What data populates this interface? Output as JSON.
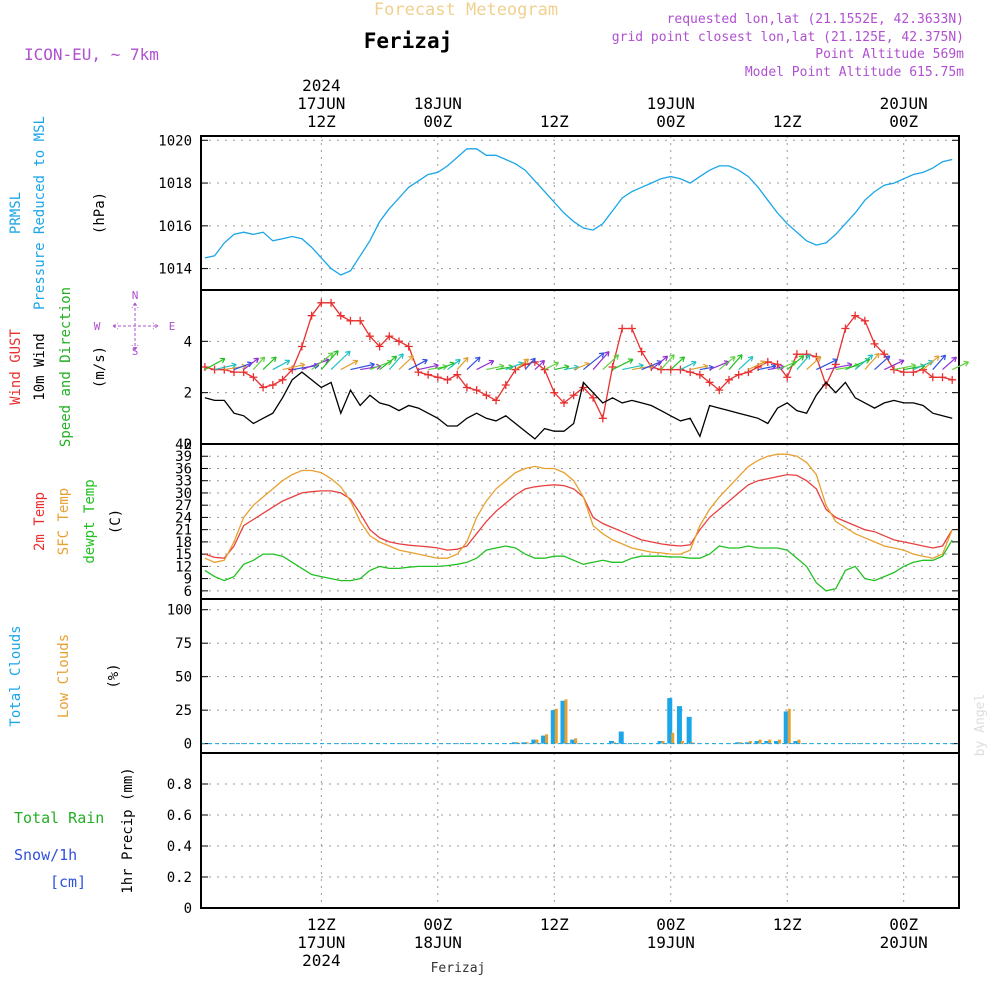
{
  "header": {
    "subtitle": "Forecast Meteogram",
    "location": "Ferizaj",
    "model": "ICON-EU, ~ 7km",
    "requested": "requested lon,lat (21.1552E, 42.3633N)",
    "grid_point": "grid point closest lon,lat (21.125E, 42.375N)",
    "point_altitude": "Point Altitude 569m",
    "model_altitude": "Model Point Altitude 615.75m",
    "footer_location": "Ferizaj",
    "credit": "by Angel"
  },
  "time_axis": {
    "top_labels": [
      {
        "h": 12,
        "lines": [
          "2024",
          "17JUN",
          "12Z"
        ]
      },
      {
        "h": 24,
        "lines": [
          "18JUN",
          "00Z"
        ]
      },
      {
        "h": 36,
        "lines": [
          "12Z"
        ]
      },
      {
        "h": 48,
        "lines": [
          "19JUN",
          "00Z"
        ]
      },
      {
        "h": 60,
        "lines": [
          "12Z"
        ]
      },
      {
        "h": 72,
        "lines": [
          "20JUN",
          "00Z"
        ]
      }
    ],
    "bottom_labels": [
      {
        "h": 12,
        "lines": [
          "12Z",
          "17JUN",
          "2024"
        ]
      },
      {
        "h": 24,
        "lines": [
          "00Z",
          "18JUN"
        ]
      },
      {
        "h": 36,
        "lines": [
          "12Z"
        ]
      },
      {
        "h": 48,
        "lines": [
          "00Z",
          "19JUN"
        ]
      },
      {
        "h": 60,
        "lines": [
          "12Z"
        ]
      },
      {
        "h": 72,
        "lines": [
          "00Z",
          "20JUN"
        ]
      }
    ]
  },
  "panels": {
    "pressure": {
      "labels": [
        {
          "text": "PRMSL",
          "color": "#1aa6e8"
        },
        {
          "text": "Pressure Reduced to MSL",
          "color": "#1aa6e8"
        },
        {
          "text": "(hPa)",
          "color": "#000000"
        }
      ]
    },
    "wind": {
      "labels": [
        {
          "text": "Wind GUST",
          "color": "#e83030"
        },
        {
          "text": "10m Wind",
          "color": "#000000"
        },
        {
          "text": "Speed and Direction",
          "color": "#22b022"
        },
        {
          "text": "(m/s)",
          "color": "#000000"
        }
      ],
      "compass": {
        "n": "N",
        "s": "S",
        "w": "W",
        "e": "E",
        "color": "#b050d0"
      }
    },
    "temperature": {
      "labels": [
        {
          "text": "2m Temp",
          "color": "#e83030"
        },
        {
          "text": "SFC Temp",
          "color": "#e8a030"
        },
        {
          "text": "dewpt Temp",
          "color": "#22c022"
        },
        {
          "text": "(C)",
          "color": "#000000"
        }
      ]
    },
    "clouds": {
      "labels": [
        {
          "text": "Total Clouds",
          "color": "#1aa6e8"
        },
        {
          "text": "Low Clouds",
          "color": "#e8a030"
        },
        {
          "text": "(%)",
          "color": "#000000"
        }
      ]
    },
    "precip": {
      "labels": [
        {
          "text": "1hr Precip (mm)",
          "color": "#000000"
        }
      ],
      "side_labels": [
        {
          "text": "Total  Rain",
          "color": "#22b022"
        },
        {
          "text": "Snow/1h",
          "color": "#3050e0"
        },
        {
          "text": "[cm]",
          "color": "#3050e0"
        }
      ]
    }
  },
  "colors": {
    "pressure": "#1aa6e8",
    "gust": "#e83030",
    "wind": "#000000",
    "t2m": "#e84040",
    "tsfc": "#e8a030",
    "dewpt": "#22c022",
    "total_cloud": "#1aa6e8",
    "low_cloud": "#e8a030",
    "grid": "#999999"
  },
  "chart_data": [
    {
      "type": "line",
      "x_unit": "hours from 2024-06-17 00Z",
      "title": "PRMSL Pressure Reduced to MSL",
      "ylabel": "(hPa)",
      "ylim": [
        1013,
        1020.2
      ],
      "yticks": [
        1014,
        1016,
        1018,
        1020
      ],
      "x": [
        0,
        1,
        2,
        3,
        4,
        5,
        6,
        7,
        8,
        9,
        10,
        11,
        12,
        13,
        14,
        15,
        16,
        17,
        18,
        19,
        20,
        21,
        22,
        23,
        24,
        25,
        26,
        27,
        28,
        29,
        30,
        31,
        32,
        33,
        34,
        35,
        36,
        37,
        38,
        39,
        40,
        41,
        42,
        43,
        44,
        45,
        46,
        47,
        48,
        49,
        50,
        51,
        52,
        53,
        54,
        55,
        56,
        57,
        58,
        59,
        60,
        61,
        62,
        63,
        64,
        65,
        66,
        67,
        68,
        69,
        70,
        71,
        72,
        73,
        74,
        75,
        76,
        77
      ],
      "series": [
        {
          "name": "PRMSL",
          "values": [
            1014.5,
            1014.6,
            1015.2,
            1015.6,
            1015.7,
            1015.6,
            1015.7,
            1015.3,
            1015.4,
            1015.5,
            1015.4,
            1015.0,
            1014.5,
            1014.0,
            1013.7,
            1013.9,
            1014.6,
            1015.3,
            1016.2,
            1016.8,
            1017.3,
            1017.8,
            1018.1,
            1018.4,
            1018.5,
            1018.8,
            1019.2,
            1019.6,
            1019.6,
            1019.3,
            1019.3,
            1019.1,
            1018.9,
            1018.6,
            1018.1,
            1017.6,
            1017.1,
            1016.6,
            1016.2,
            1015.9,
            1015.8,
            1016.1,
            1016.7,
            1017.3,
            1017.6,
            1017.8,
            1018.0,
            1018.2,
            1018.3,
            1018.2,
            1018.0,
            1018.3,
            1018.6,
            1018.8,
            1018.8,
            1018.6,
            1018.3,
            1017.8,
            1017.2,
            1016.6,
            1016.1,
            1015.7,
            1015.3,
            1015.1,
            1015.2,
            1015.6,
            1016.1,
            1016.6,
            1017.2,
            1017.6,
            1017.9,
            1018.0,
            1018.2,
            1018.4,
            1018.5,
            1018.7,
            1019.0,
            1019.1
          ]
        }
      ]
    },
    {
      "type": "line",
      "x_unit": "hours from 2024-06-17 00Z",
      "title": "Wind GUST / 10m Wind Speed and Direction",
      "ylabel": "(m/s)",
      "ylim": [
        0,
        6
      ],
      "yticks": [
        0,
        2,
        4
      ],
      "x": [
        0,
        1,
        2,
        3,
        4,
        5,
        6,
        7,
        8,
        9,
        10,
        11,
        12,
        13,
        14,
        15,
        16,
        17,
        18,
        19,
        20,
        21,
        22,
        23,
        24,
        25,
        26,
        27,
        28,
        29,
        30,
        31,
        32,
        33,
        34,
        35,
        36,
        37,
        38,
        39,
        40,
        41,
        42,
        43,
        44,
        45,
        46,
        47,
        48,
        49,
        50,
        51,
        52,
        53,
        54,
        55,
        56,
        57,
        58,
        59,
        60,
        61,
        62,
        63,
        64,
        65,
        66,
        67,
        68,
        69,
        70,
        71,
        72,
        73,
        74,
        75,
        76,
        77
      ],
      "series": [
        {
          "name": "Wind GUST",
          "values": [
            3.0,
            2.9,
            2.9,
            2.8,
            2.8,
            2.6,
            2.2,
            2.3,
            2.5,
            2.9,
            3.8,
            5.0,
            5.5,
            5.5,
            5.0,
            4.8,
            4.8,
            4.2,
            3.8,
            4.2,
            4.0,
            3.8,
            2.8,
            2.7,
            2.6,
            2.5,
            2.7,
            2.2,
            2.1,
            1.9,
            1.7,
            2.3,
            2.9,
            3.1,
            3.2,
            2.9,
            2.0,
            1.6,
            1.9,
            2.2,
            1.8,
            1.0,
            3.0,
            4.5,
            4.5,
            3.6,
            3.0,
            2.9,
            2.9,
            2.9,
            2.8,
            2.7,
            2.4,
            2.1,
            2.5,
            2.7,
            2.8,
            3.0,
            3.2,
            3.1,
            2.6,
            3.5,
            3.5,
            3.4,
            2.3,
            3.1,
            4.5,
            5.0,
            4.8,
            3.9,
            3.5,
            2.9,
            2.8,
            2.8,
            2.9,
            2.6,
            2.6,
            2.5
          ]
        },
        {
          "name": "10m Wind",
          "values": [
            1.8,
            1.7,
            1.7,
            1.2,
            1.1,
            0.8,
            1.0,
            1.2,
            1.8,
            2.5,
            2.8,
            2.5,
            2.2,
            2.4,
            1.2,
            2.1,
            1.5,
            1.9,
            1.6,
            1.5,
            1.3,
            1.5,
            1.4,
            1.2,
            1.0,
            0.7,
            0.7,
            1.0,
            1.2,
            1.0,
            0.9,
            1.1,
            0.8,
            0.5,
            0.2,
            0.6,
            0.5,
            0.5,
            0.8,
            2.4,
            2.0,
            1.6,
            1.8,
            1.6,
            1.7,
            1.6,
            1.5,
            1.3,
            1.1,
            0.9,
            1.0,
            0.3,
            1.5,
            1.4,
            1.3,
            1.2,
            1.1,
            1.0,
            0.8,
            1.4,
            1.6,
            1.3,
            1.2,
            1.9,
            2.4,
            2.0,
            2.4,
            1.8,
            1.6,
            1.4,
            1.6,
            1.7,
            1.6,
            1.6,
            1.5,
            1.2,
            1.1,
            1.0
          ]
        }
      ]
    },
    {
      "type": "line",
      "x_unit": "hours from 2024-06-17 00Z",
      "title": "2m Temp / SFC Temp / dewpt Temp",
      "ylabel": "(C)",
      "ylim": [
        4,
        42
      ],
      "yticks": [
        6,
        9,
        12,
        15,
        18,
        21,
        24,
        27,
        30,
        33,
        36,
        39,
        42
      ],
      "x": [
        0,
        1,
        2,
        3,
        4,
        5,
        6,
        7,
        8,
        9,
        10,
        11,
        12,
        13,
        14,
        15,
        16,
        17,
        18,
        19,
        20,
        21,
        22,
        23,
        24,
        25,
        26,
        27,
        28,
        29,
        30,
        31,
        32,
        33,
        34,
        35,
        36,
        37,
        38,
        39,
        40,
        41,
        42,
        43,
        44,
        45,
        46,
        47,
        48,
        49,
        50,
        51,
        52,
        53,
        54,
        55,
        56,
        57,
        58,
        59,
        60,
        61,
        62,
        63,
        64,
        65,
        66,
        67,
        68,
        69,
        70,
        71,
        72,
        73,
        74,
        75,
        76,
        77
      ],
      "series": [
        {
          "name": "2m Temp",
          "values": [
            15.0,
            14.2,
            14.0,
            17.0,
            22.0,
            23.5,
            25.0,
            26.5,
            28.0,
            29.0,
            30.0,
            30.3,
            30.5,
            30.5,
            30.0,
            28.5,
            25.0,
            21.0,
            19.0,
            18.0,
            17.5,
            17.2,
            17.0,
            16.8,
            16.5,
            16.0,
            16.2,
            17.0,
            20.0,
            23.0,
            25.5,
            27.5,
            29.5,
            31.0,
            31.5,
            31.8,
            32.0,
            31.8,
            31.0,
            29.0,
            24.0,
            22.5,
            21.5,
            20.5,
            19.5,
            18.5,
            18.0,
            17.5,
            17.2,
            17.0,
            17.3,
            21.0,
            24.0,
            26.0,
            28.0,
            30.0,
            32.0,
            33.0,
            33.5,
            34.0,
            34.5,
            34.3,
            33.0,
            31.0,
            26.0,
            24.0,
            23.0,
            22.0,
            21.0,
            20.5,
            19.5,
            18.5,
            18.0,
            17.5,
            17.0,
            16.5,
            17.0,
            21.0
          ]
        },
        {
          "name": "SFC Temp",
          "values": [
            14.0,
            13.0,
            13.5,
            18.0,
            24.0,
            27.0,
            29.0,
            31.0,
            33.0,
            34.5,
            35.5,
            35.5,
            35.0,
            33.5,
            31.5,
            28.0,
            23.0,
            19.5,
            18.0,
            17.0,
            16.0,
            15.5,
            15.0,
            14.5,
            14.0,
            14.0,
            15.0,
            18.0,
            24.0,
            28.0,
            31.0,
            33.0,
            35.0,
            36.0,
            36.5,
            36.0,
            36.0,
            35.0,
            33.0,
            29.0,
            22.0,
            20.0,
            18.5,
            17.5,
            16.5,
            16.0,
            15.5,
            15.3,
            15.0,
            15.0,
            16.0,
            22.0,
            26.0,
            29.0,
            31.5,
            34.0,
            36.5,
            38.0,
            39.0,
            39.5,
            39.5,
            39.0,
            37.5,
            34.5,
            27.0,
            23.0,
            21.5,
            20.0,
            19.0,
            18.0,
            17.0,
            16.5,
            16.0,
            15.0,
            14.5,
            14.0,
            15.0,
            21.0
          ]
        },
        {
          "name": "dewpt Temp",
          "values": [
            11.0,
            9.5,
            8.5,
            9.5,
            12.5,
            13.5,
            15.0,
            15.0,
            14.5,
            13.0,
            11.5,
            10.0,
            9.5,
            9.0,
            8.5,
            8.5,
            9.0,
            11.0,
            12.0,
            11.5,
            11.5,
            11.8,
            12.0,
            12.0,
            12.0,
            12.2,
            12.5,
            13.0,
            14.0,
            16.0,
            16.5,
            17.0,
            16.5,
            15.0,
            14.0,
            14.0,
            14.5,
            14.5,
            13.5,
            12.5,
            13.0,
            13.5,
            13.0,
            13.0,
            14.0,
            14.5,
            14.5,
            14.5,
            14.3,
            14.3,
            14.0,
            14.0,
            15.0,
            17.0,
            16.5,
            16.5,
            17.0,
            16.5,
            16.5,
            16.5,
            16.0,
            14.0,
            12.0,
            8.0,
            6.0,
            6.5,
            11.0,
            12.0,
            9.0,
            8.5,
            9.5,
            10.5,
            12.0,
            13.0,
            13.5,
            13.5,
            14.5,
            18.5
          ]
        }
      ]
    },
    {
      "type": "bar",
      "x_unit": "hours from 2024-06-17 00Z",
      "title": "Total Clouds / Low Clouds",
      "ylabel": "(%)",
      "ylim": [
        -7,
        108
      ],
      "yticks": [
        0,
        25,
        50,
        75,
        100
      ],
      "x": [
        32,
        33,
        34,
        35,
        36,
        37,
        38,
        39,
        42,
        43,
        47,
        48,
        49,
        50,
        55,
        56,
        57,
        58,
        59,
        60,
        61
      ],
      "series": [
        {
          "name": "Total Clouds",
          "values": [
            1,
            1,
            3,
            6,
            25,
            32,
            3,
            0,
            2,
            9,
            2,
            34,
            28,
            20,
            1,
            1,
            2,
            2,
            2,
            24,
            2
          ]
        },
        {
          "name": "Low Clouds",
          "values": [
            1,
            1,
            3,
            7,
            26,
            33,
            4,
            0,
            1,
            0,
            2,
            8,
            2,
            1,
            1,
            2,
            3,
            3,
            3,
            26,
            3
          ]
        }
      ]
    },
    {
      "type": "bar",
      "x_unit": "hours from 2024-06-17 00Z",
      "title": "1hr Precip",
      "ylabel": "1hr Precip (mm)",
      "ylim": [
        0,
        1.0
      ],
      "yticks": [
        0,
        0.2,
        0.4,
        0.6,
        0.8
      ],
      "x": [],
      "series": [
        {
          "name": "Total Rain",
          "values": []
        },
        {
          "name": "Snow/1h",
          "values": []
        }
      ]
    }
  ]
}
